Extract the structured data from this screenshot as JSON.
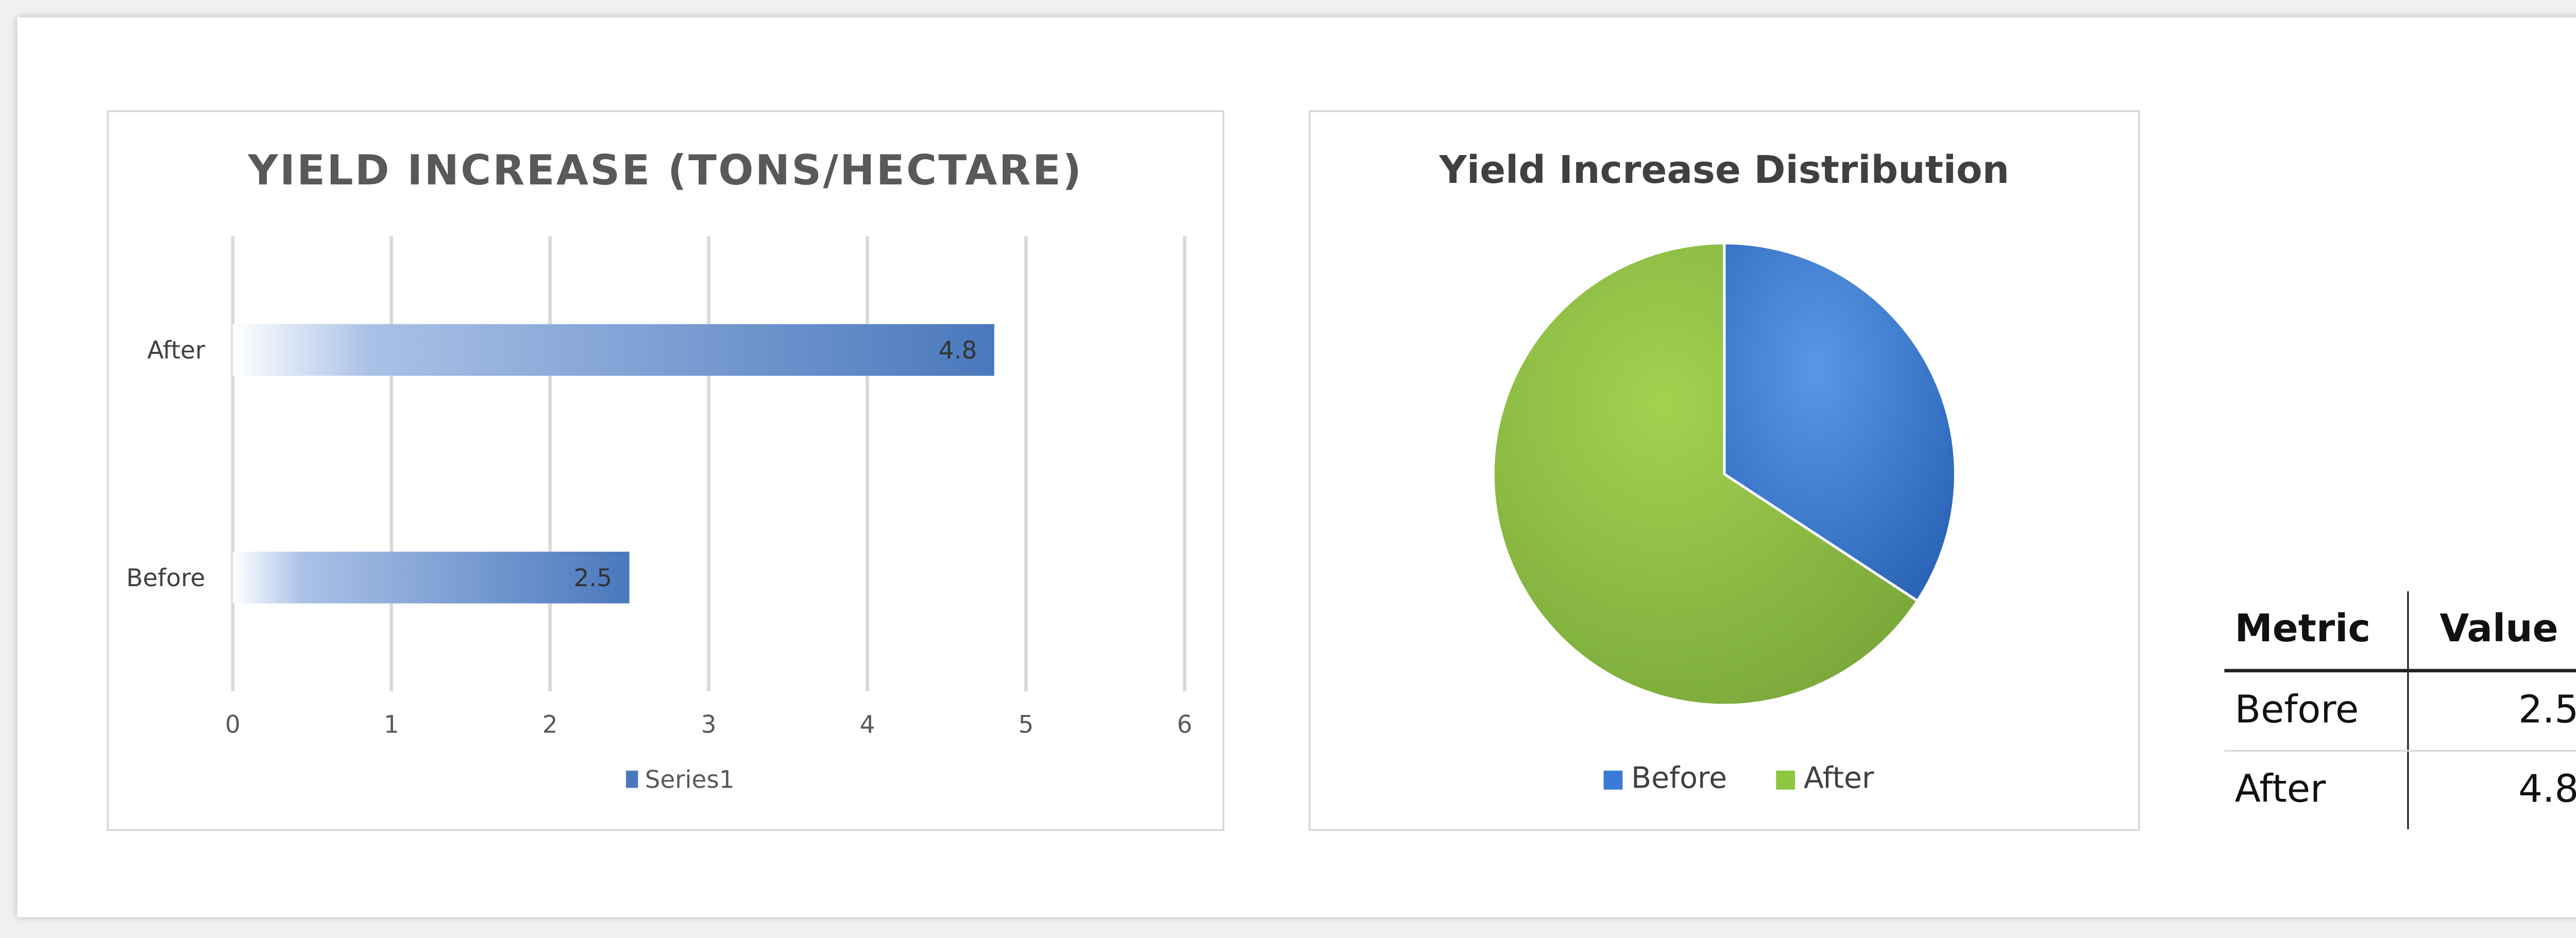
{
  "chart_data": [
    {
      "type": "bar",
      "orientation": "horizontal",
      "title": "YIELD INCREASE (TONS/HECTARE)",
      "categories": [
        "Before",
        "After"
      ],
      "series": [
        {
          "name": "Series1",
          "values": [
            2.5,
            4.8
          ],
          "color": "#4a78bd"
        }
      ],
      "data_labels": [
        "2.5",
        "4.8"
      ],
      "xlim": [
        0,
        6
      ],
      "ticks": [
        "0",
        "1",
        "2",
        "3",
        "4",
        "5",
        "6"
      ],
      "grid": true,
      "legend": "bottom"
    },
    {
      "type": "pie",
      "title": "Yield Increase Distribution",
      "labels": [
        "Before",
        "After"
      ],
      "values": [
        2.5,
        4.8
      ],
      "colors": [
        "#3a7bd5",
        "#8dc63f"
      ],
      "legend": "bottom"
    }
  ],
  "table": {
    "headers": [
      "Metric",
      "Value"
    ],
    "rows": [
      [
        "Before",
        "2.5"
      ],
      [
        "After",
        "4.8"
      ]
    ]
  }
}
